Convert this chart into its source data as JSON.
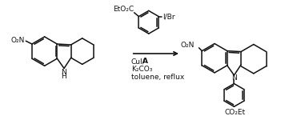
{
  "bg_color": "#ffffff",
  "line_color": "#111111",
  "line_width": 1.1,
  "arrow_color": "#111111",
  "text_color": "#111111",
  "reagent_cui": "CuI/",
  "reagent_a": "A",
  "reagent2": "K₂CO₃",
  "reagent3": "toluene, reflux",
  "label_NO2_left": "O₂N",
  "label_NO2_product": "O₂N",
  "label_EtO2C": "EtO₂C",
  "label_IBr": "I/Br",
  "label_CO2Et": "CO₂Et"
}
